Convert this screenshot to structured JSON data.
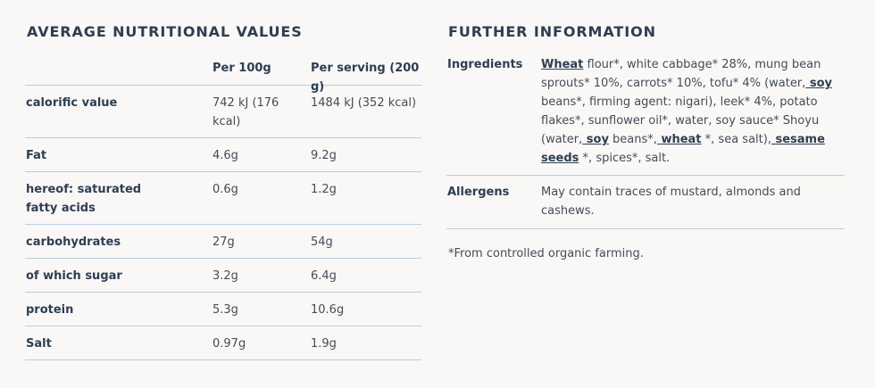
{
  "nutrition": {
    "heading": "AVERAGE NUTRITIONAL VALUES",
    "col_per100": "Per 100g",
    "col_serving": "Per serving (200 g)",
    "rows": [
      {
        "label": "calorific value",
        "per100": "742 kJ (176 kcal)",
        "serving": "1484 kJ (352 kcal)"
      },
      {
        "label": "Fat",
        "per100": "4.6g",
        "serving": "9.2g"
      },
      {
        "label": "hereof: saturated fatty acids",
        "per100": "0.6g",
        "serving": "1.2g"
      },
      {
        "label": "carbohydrates",
        "per100": "27g",
        "serving": "54g"
      },
      {
        "label": "of which sugar",
        "per100": "3.2g",
        "serving": "6.4g"
      },
      {
        "label": "protein",
        "per100": "5.3g",
        "serving": "10.6g"
      },
      {
        "label": "Salt",
        "per100": "0.97g",
        "serving": "1.9g"
      }
    ]
  },
  "further": {
    "heading": "FURTHER INFORMATION",
    "ingredients_label": "Ingredients",
    "ingredients": {
      "wheat": "Wheat",
      "part1": " flour*, white cabbage* 28%, mung bean sprouts* 10%, carrots* 10%, tofu* 4% (water,",
      "soy1": " soy",
      "part2": " beans*, firming agent: nigari), leek* 4%, potato flakes*, sunflower oil*, water, soy sauce* Shoyu (water,",
      "soy2": " soy",
      "part3": " beans*,",
      "wheat2": " wheat",
      "part4": " *, sea salt),",
      "sesame": " sesame seeds",
      "part5": " *, spices*, salt."
    },
    "allergens_label": "Allergens",
    "allergens": "May contain traces of mustard, almonds and cashews.",
    "footnote": "*From controlled organic farming."
  }
}
